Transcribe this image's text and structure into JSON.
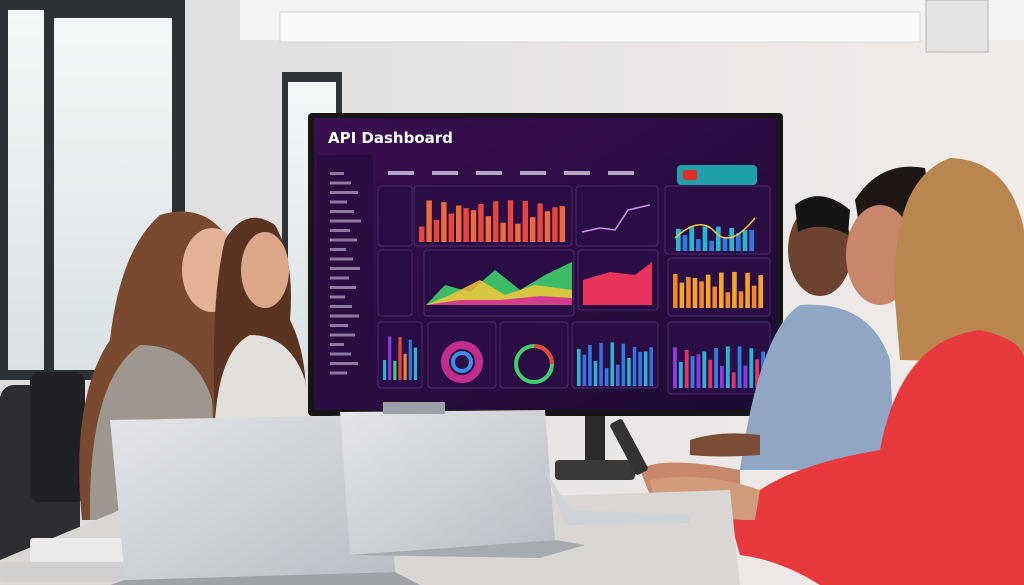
{
  "screen": {
    "title": "API Dashboard"
  }
}
